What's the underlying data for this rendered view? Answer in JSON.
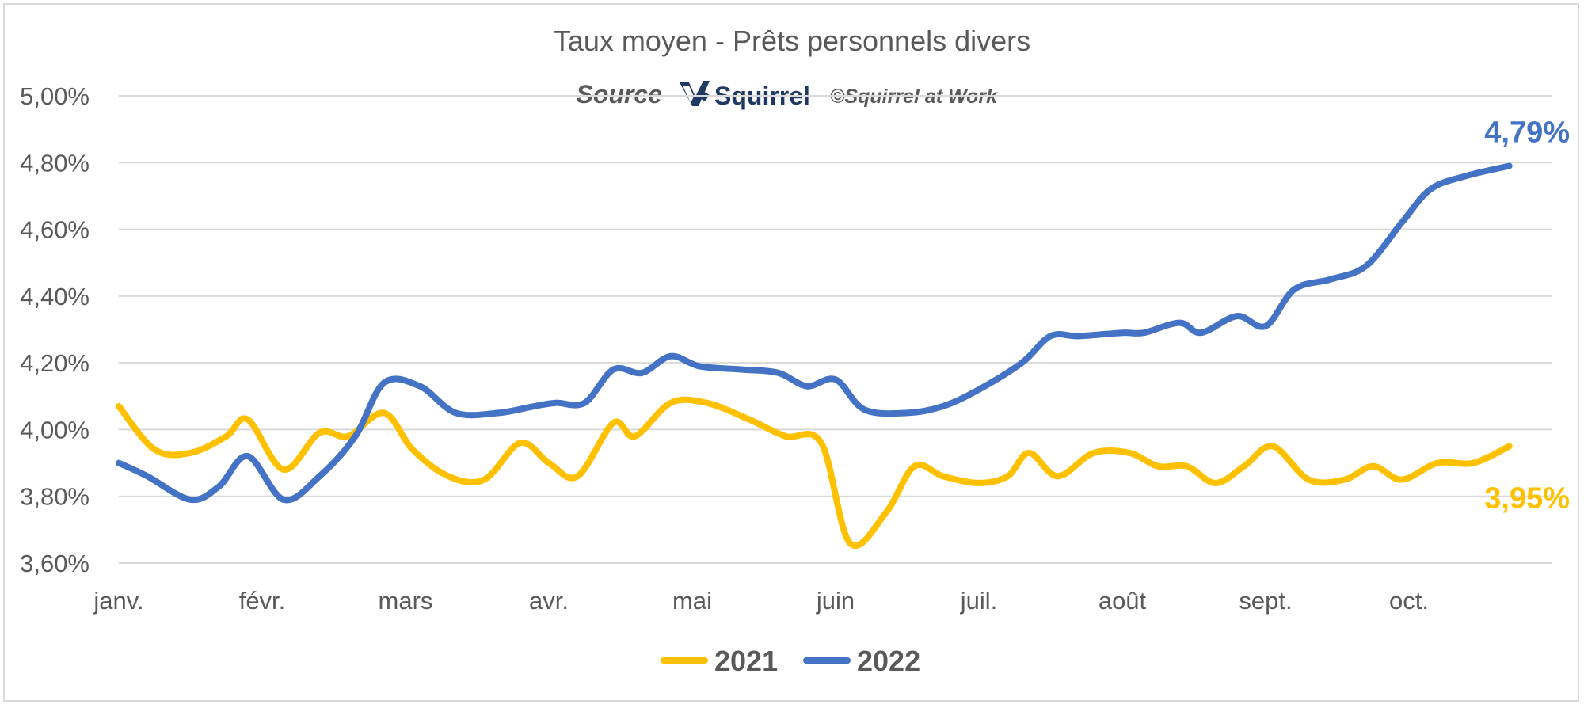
{
  "chart_data": {
    "type": "line",
    "title": "Taux moyen - Prêts personnels divers",
    "source": {
      "label": "Source",
      "brand": "Squirrel",
      "copyright": "©Squirrel at Work"
    },
    "x_tick_labels": [
      "janv.",
      "févr.",
      "mars",
      "avr.",
      "mai",
      "juin",
      "juil.",
      "août",
      "sept.",
      "oct."
    ],
    "y_tick_labels": [
      "3,60%",
      "3,80%",
      "4,00%",
      "4,20%",
      "4,40%",
      "4,60%",
      "4,80%",
      "5,00%"
    ],
    "y_ticks": [
      3.6,
      3.8,
      4.0,
      4.2,
      4.4,
      4.6,
      4.8,
      5.0
    ],
    "ylim": [
      3.6,
      5.0
    ],
    "xlim": [
      0,
      10
    ],
    "grid": true,
    "legend_position": "bottom",
    "series": [
      {
        "name": "2021",
        "color": "#ffc000",
        "end_label": "3,95%",
        "points": [
          [
            0.0,
            4.07
          ],
          [
            0.25,
            3.94
          ],
          [
            0.5,
            3.93
          ],
          [
            0.75,
            3.98
          ],
          [
            0.9,
            4.03
          ],
          [
            1.15,
            3.88
          ],
          [
            1.4,
            3.99
          ],
          [
            1.6,
            3.98
          ],
          [
            1.85,
            4.05
          ],
          [
            2.05,
            3.94
          ],
          [
            2.3,
            3.86
          ],
          [
            2.55,
            3.85
          ],
          [
            2.8,
            3.96
          ],
          [
            3.0,
            3.9
          ],
          [
            3.2,
            3.86
          ],
          [
            3.45,
            4.02
          ],
          [
            3.6,
            3.98
          ],
          [
            3.85,
            4.08
          ],
          [
            4.1,
            4.08
          ],
          [
            4.4,
            4.03
          ],
          [
            4.65,
            3.98
          ],
          [
            4.9,
            3.96
          ],
          [
            5.1,
            3.66
          ],
          [
            5.35,
            3.75
          ],
          [
            5.55,
            3.89
          ],
          [
            5.75,
            3.86
          ],
          [
            6.0,
            3.84
          ],
          [
            6.2,
            3.86
          ],
          [
            6.35,
            3.93
          ],
          [
            6.55,
            3.86
          ],
          [
            6.8,
            3.93
          ],
          [
            7.05,
            3.93
          ],
          [
            7.25,
            3.89
          ],
          [
            7.45,
            3.89
          ],
          [
            7.65,
            3.84
          ],
          [
            7.85,
            3.89
          ],
          [
            8.05,
            3.95
          ],
          [
            8.3,
            3.85
          ],
          [
            8.55,
            3.85
          ],
          [
            8.75,
            3.89
          ],
          [
            8.95,
            3.85
          ],
          [
            9.2,
            3.9
          ],
          [
            9.45,
            3.9
          ],
          [
            9.7,
            3.95
          ]
        ]
      },
      {
        "name": "2022",
        "color": "#4472c4",
        "end_label": "4,79%",
        "points": [
          [
            0.0,
            3.9
          ],
          [
            0.2,
            3.86
          ],
          [
            0.5,
            3.79
          ],
          [
            0.7,
            3.83
          ],
          [
            0.9,
            3.92
          ],
          [
            1.15,
            3.79
          ],
          [
            1.4,
            3.86
          ],
          [
            1.65,
            3.98
          ],
          [
            1.85,
            4.14
          ],
          [
            2.1,
            4.13
          ],
          [
            2.35,
            4.05
          ],
          [
            2.65,
            4.05
          ],
          [
            2.9,
            4.07
          ],
          [
            3.05,
            4.08
          ],
          [
            3.25,
            4.08
          ],
          [
            3.45,
            4.18
          ],
          [
            3.65,
            4.17
          ],
          [
            3.85,
            4.22
          ],
          [
            4.05,
            4.19
          ],
          [
            4.35,
            4.18
          ],
          [
            4.6,
            4.17
          ],
          [
            4.8,
            4.13
          ],
          [
            5.0,
            4.15
          ],
          [
            5.2,
            4.06
          ],
          [
            5.5,
            4.05
          ],
          [
            5.75,
            4.07
          ],
          [
            6.0,
            4.12
          ],
          [
            6.3,
            4.2
          ],
          [
            6.5,
            4.28
          ],
          [
            6.7,
            4.28
          ],
          [
            7.0,
            4.29
          ],
          [
            7.15,
            4.29
          ],
          [
            7.4,
            4.32
          ],
          [
            7.55,
            4.29
          ],
          [
            7.8,
            4.34
          ],
          [
            8.0,
            4.31
          ],
          [
            8.2,
            4.42
          ],
          [
            8.45,
            4.45
          ],
          [
            8.7,
            4.49
          ],
          [
            8.95,
            4.62
          ],
          [
            9.15,
            4.72
          ],
          [
            9.4,
            4.76
          ],
          [
            9.7,
            4.79
          ]
        ]
      }
    ]
  }
}
